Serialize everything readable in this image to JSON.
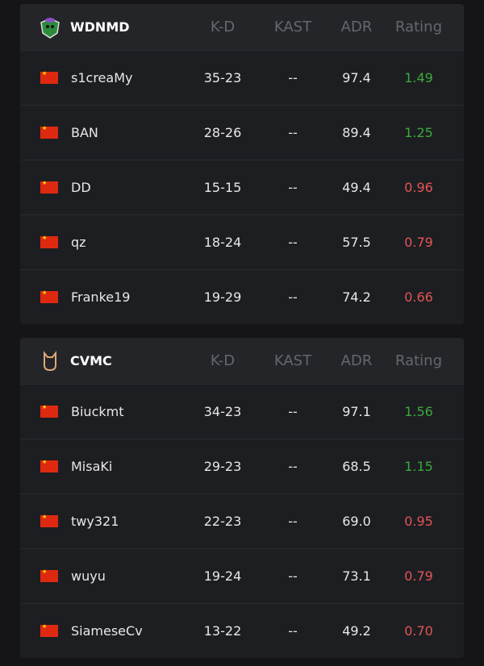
{
  "columns": [
    "K-D",
    "KAST",
    "ADR",
    "Rating"
  ],
  "colors": {
    "good": "#3aaa3a",
    "bad": "#e25555"
  },
  "teams": [
    {
      "name": "WDNMD",
      "logo": "wdnmd-frog-logo",
      "players": [
        {
          "name": "s1creaMy",
          "flag": "china-flag",
          "kd": "35-23",
          "kast": "--",
          "adr": "97.4",
          "rating": "1.49"
        },
        {
          "name": "BAN",
          "flag": "china-flag",
          "kd": "28-26",
          "kast": "--",
          "adr": "89.4",
          "rating": "1.25"
        },
        {
          "name": "DD",
          "flag": "china-flag",
          "kd": "15-15",
          "kast": "--",
          "adr": "49.4",
          "rating": "0.96"
        },
        {
          "name": "qz",
          "flag": "china-flag",
          "kd": "18-24",
          "kast": "--",
          "adr": "57.5",
          "rating": "0.79"
        },
        {
          "name": "Franke19",
          "flag": "china-flag",
          "kd": "19-29",
          "kast": "--",
          "adr": "74.2",
          "rating": "0.66"
        }
      ]
    },
    {
      "name": "CVMC",
      "logo": "cvmc-cat-logo",
      "players": [
        {
          "name": "Biuckmt",
          "flag": "china-flag",
          "kd": "34-23",
          "kast": "--",
          "adr": "97.1",
          "rating": "1.56"
        },
        {
          "name": "MisaKi",
          "flag": "china-flag",
          "kd": "29-23",
          "kast": "--",
          "adr": "68.5",
          "rating": "1.15"
        },
        {
          "name": "twy321",
          "flag": "china-flag",
          "kd": "22-23",
          "kast": "--",
          "adr": "69.0",
          "rating": "0.95"
        },
        {
          "name": "wuyu",
          "flag": "china-flag",
          "kd": "19-24",
          "kast": "--",
          "adr": "73.1",
          "rating": "0.79"
        },
        {
          "name": "SiameseCv",
          "flag": "china-flag",
          "kd": "13-22",
          "kast": "--",
          "adr": "49.2",
          "rating": "0.70"
        }
      ]
    }
  ]
}
